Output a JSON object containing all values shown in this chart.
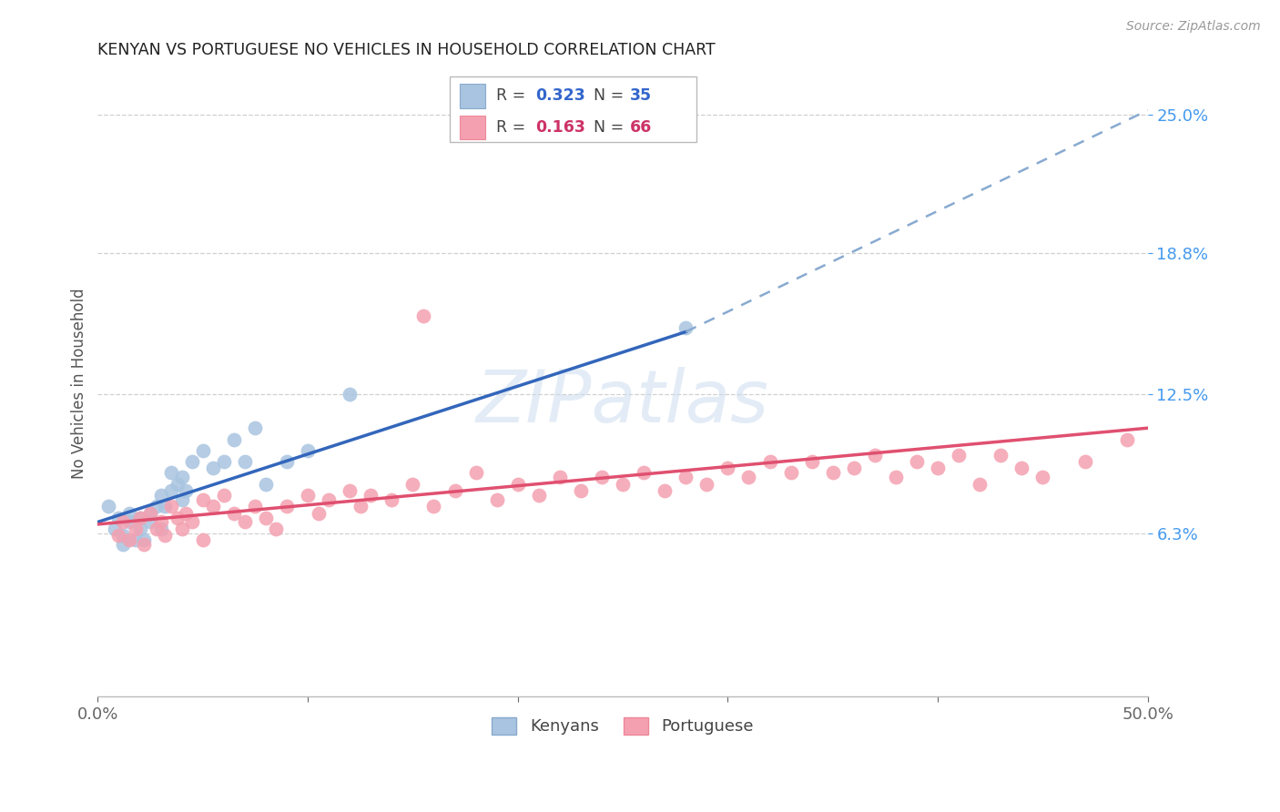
{
  "title": "KENYAN VS PORTUGUESE NO VEHICLES IN HOUSEHOLD CORRELATION CHART",
  "source": "Source: ZipAtlas.com",
  "ylabel": "No Vehicles in Household",
  "xlim": [
    0.0,
    0.5
  ],
  "ylim": [
    -0.01,
    0.27
  ],
  "ytick_positions": [
    0.063,
    0.125,
    0.188,
    0.25
  ],
  "ytick_labels": [
    "6.3%",
    "12.5%",
    "18.8%",
    "25.0%"
  ],
  "background_color": "#ffffff",
  "grid_color": "#d0d0d0",
  "watermark": "ZIPatlas",
  "blue_color": "#a8c4e0",
  "pink_color": "#f4a0b0",
  "line_blue_solid": "#3366bb",
  "line_blue_dash": "#88aad0",
  "line_pink": "#e05070",
  "kenyans_x": [
    0.005,
    0.008,
    0.01,
    0.012,
    0.012,
    0.015,
    0.015,
    0.018,
    0.02,
    0.02,
    0.022,
    0.025,
    0.025,
    0.028,
    0.03,
    0.03,
    0.032,
    0.035,
    0.035,
    0.038,
    0.04,
    0.04,
    0.042,
    0.045,
    0.05,
    0.055,
    0.06,
    0.065,
    0.07,
    0.075,
    0.08,
    0.09,
    0.1,
    0.12,
    0.28
  ],
  "kenyans_y": [
    0.075,
    0.065,
    0.07,
    0.058,
    0.062,
    0.068,
    0.072,
    0.06,
    0.065,
    0.07,
    0.06,
    0.068,
    0.072,
    0.075,
    0.065,
    0.08,
    0.075,
    0.082,
    0.09,
    0.085,
    0.078,
    0.088,
    0.082,
    0.095,
    0.1,
    0.092,
    0.095,
    0.105,
    0.095,
    0.11,
    0.085,
    0.095,
    0.1,
    0.125,
    0.155
  ],
  "portuguese_x": [
    0.01,
    0.012,
    0.015,
    0.018,
    0.02,
    0.022,
    0.025,
    0.028,
    0.03,
    0.032,
    0.035,
    0.038,
    0.04,
    0.042,
    0.045,
    0.05,
    0.05,
    0.055,
    0.06,
    0.065,
    0.07,
    0.075,
    0.08,
    0.085,
    0.09,
    0.1,
    0.105,
    0.11,
    0.12,
    0.125,
    0.13,
    0.14,
    0.15,
    0.155,
    0.16,
    0.17,
    0.18,
    0.19,
    0.2,
    0.21,
    0.22,
    0.23,
    0.24,
    0.25,
    0.26,
    0.27,
    0.28,
    0.29,
    0.3,
    0.31,
    0.32,
    0.33,
    0.34,
    0.35,
    0.36,
    0.37,
    0.38,
    0.39,
    0.4,
    0.41,
    0.42,
    0.43,
    0.44,
    0.45,
    0.47,
    0.49
  ],
  "portuguese_y": [
    0.062,
    0.068,
    0.06,
    0.065,
    0.07,
    0.058,
    0.072,
    0.065,
    0.068,
    0.062,
    0.075,
    0.07,
    0.065,
    0.072,
    0.068,
    0.078,
    0.06,
    0.075,
    0.08,
    0.072,
    0.068,
    0.075,
    0.07,
    0.065,
    0.075,
    0.08,
    0.072,
    0.078,
    0.082,
    0.075,
    0.08,
    0.078,
    0.085,
    0.16,
    0.075,
    0.082,
    0.09,
    0.078,
    0.085,
    0.08,
    0.088,
    0.082,
    0.088,
    0.085,
    0.09,
    0.082,
    0.088,
    0.085,
    0.092,
    0.088,
    0.095,
    0.09,
    0.095,
    0.09,
    0.092,
    0.098,
    0.088,
    0.095,
    0.092,
    0.098,
    0.085,
    0.098,
    0.092,
    0.088,
    0.095,
    0.105
  ],
  "blue_line_x_start": 0.0,
  "blue_line_y_start": 0.068,
  "blue_line_x_solid_end": 0.28,
  "blue_line_y_solid_end": 0.153,
  "blue_line_x_dash_end": 0.5,
  "blue_line_y_dash_end": 0.252,
  "pink_line_x_start": 0.0,
  "pink_line_y_start": 0.067,
  "pink_line_x_end": 0.5,
  "pink_line_y_end": 0.11
}
